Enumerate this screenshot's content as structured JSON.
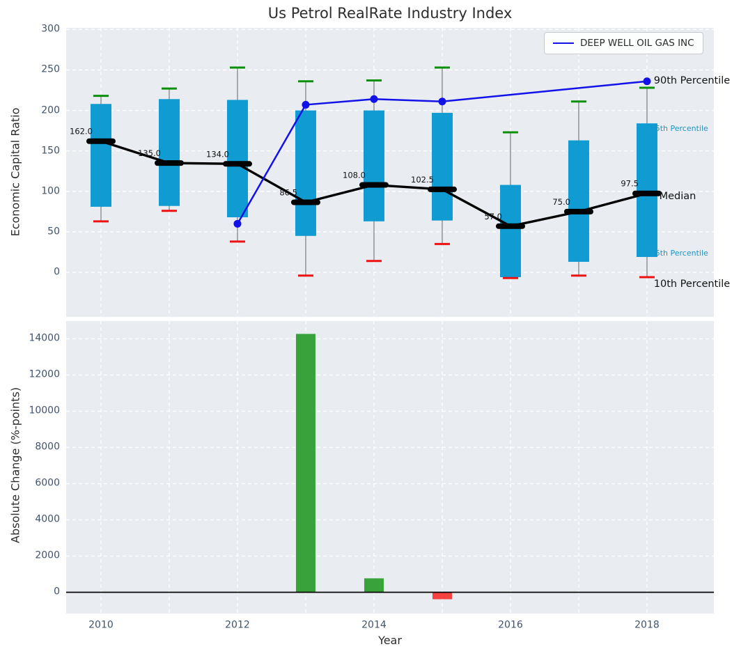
{
  "title": "Us Petrol RealRate Industry Index",
  "legend": {
    "label": "DEEP WELL OIL GAS INC"
  },
  "chart_data": [
    {
      "type": "boxplot",
      "title": "Us Petrol RealRate Industry Index",
      "ylabel": "Economic Capital Ratio",
      "yticks": [
        0,
        50,
        100,
        150,
        200,
        250,
        300
      ],
      "ylim": [
        -55,
        302
      ],
      "xlim": [
        2009.49,
        2018.98
      ],
      "grid": "white-dashed",
      "legend_position": "upper right",
      "years": [
        2010,
        2011,
        2012,
        2013,
        2014,
        2015,
        2016,
        2017,
        2018
      ],
      "boxes": [
        {
          "year": 2010,
          "p10": 63,
          "p25": 81,
          "median": 162,
          "p75": 208,
          "p90": 218,
          "label": "162.0"
        },
        {
          "year": 2011,
          "p10": 76,
          "p25": 82,
          "median": 135,
          "p75": 214,
          "p90": 227,
          "label": "135.0"
        },
        {
          "year": 2012,
          "p10": 38,
          "p25": 68,
          "median": 134,
          "p75": 213,
          "p90": 253,
          "label": "134.0"
        },
        {
          "year": 2013,
          "p10": -4,
          "p25": 45,
          "median": 86.5,
          "p75": 200,
          "p90": 236,
          "label": "86.5"
        },
        {
          "year": 2014,
          "p10": 14,
          "p25": 63,
          "median": 108,
          "p75": 200,
          "p90": 237,
          "label": "108.0"
        },
        {
          "year": 2015,
          "p10": 35,
          "p25": 64,
          "median": 102.5,
          "p75": 197,
          "p90": 253,
          "label": "102.5"
        },
        {
          "year": 2016,
          "p10": -7,
          "p25": -6,
          "median": 57,
          "p75": 108,
          "p90": 173,
          "label": "57.0"
        },
        {
          "year": 2017,
          "p10": -4,
          "p25": 13,
          "median": 75,
          "p75": 163,
          "p90": 211,
          "label": "75.0"
        },
        {
          "year": 2018,
          "p10": -6,
          "p25": 19,
          "median": 97.5,
          "p75": 184,
          "p90": 228,
          "label": "97.5"
        }
      ],
      "box_style": {
        "fill": "#109bd2",
        "whisker": "#7a7a7a",
        "cap_high": "#0a8f0a",
        "cap_low": "#ee1111",
        "median_color": "#000000"
      },
      "series": [
        {
          "name": "DEEP WELL OIL GAS INC",
          "color": "#1111e8",
          "points": [
            [
              2012,
              60
            ],
            [
              2013,
              207
            ],
            [
              2014,
              214
            ],
            [
              2015,
              211
            ],
            [
              2018,
              236
            ]
          ]
        }
      ],
      "annotations": [
        {
          "text": "90th Percentile",
          "color": "#111111",
          "font_px": 14.5,
          "year": 2018.1,
          "value": 236
        },
        {
          "text": "5th Percentile",
          "color": "#1a96c8",
          "font_px": 11,
          "year": 2018.12,
          "value": 177
        },
        {
          "text": "Median",
          "color": "#111111",
          "font_px": 14.5,
          "year": 2018.18,
          "value": 93
        },
        {
          "text": "5th Percentile",
          "color": "#1a96c8",
          "font_px": 11,
          "year": 2018.12,
          "value": 23
        },
        {
          "text": "10th Percentile",
          "color": "#111111",
          "font_px": 14.5,
          "year": 2018.1,
          "value": -15
        }
      ]
    },
    {
      "type": "bar",
      "ylabel": "Absolute Change (%-points)",
      "xlabel": "Year",
      "yticks": [
        0,
        2000,
        4000,
        6000,
        8000,
        10000,
        12000,
        14000
      ],
      "ylim": [
        -1174,
        14980
      ],
      "xlim": [
        2009.49,
        2018.98
      ],
      "xticks": [
        2010,
        2012,
        2014,
        2016,
        2018
      ],
      "grid": "white-dashed",
      "bars": [
        {
          "year": 2013,
          "value": 14270,
          "color": "#3aa23a"
        },
        {
          "year": 2014,
          "value": 770,
          "color": "#3aa23a"
        },
        {
          "year": 2015,
          "value": -385,
          "color": "#f54040"
        }
      ],
      "zero_line_color": "#000000"
    }
  ]
}
